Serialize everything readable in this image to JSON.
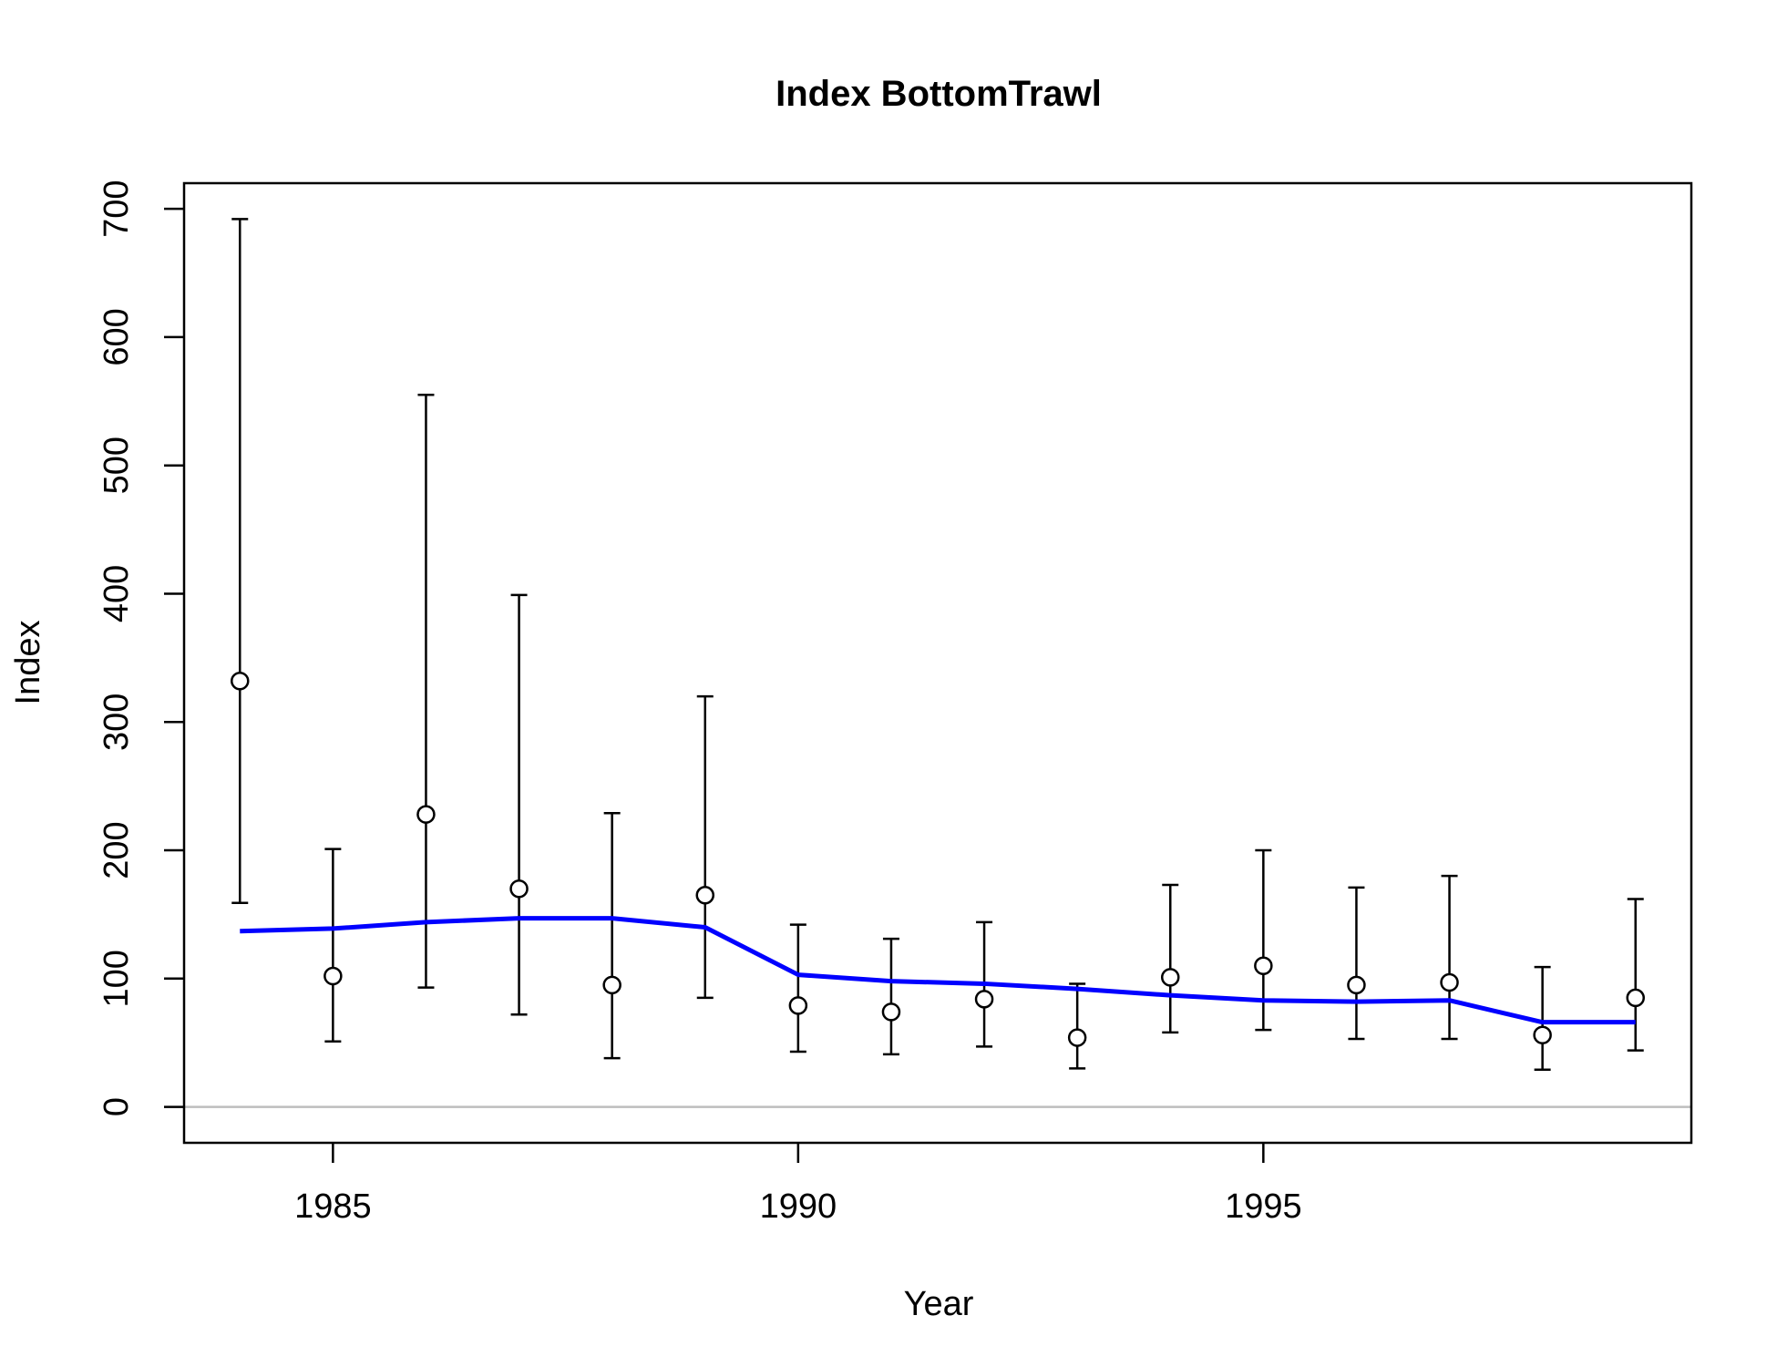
{
  "chart_data": {
    "type": "scatter",
    "title": "Index BottomTrawl",
    "xlabel": "Year",
    "ylabel": "Index",
    "xlim": [
      1983.4,
      1999.6
    ],
    "ylim": [
      -28,
      720
    ],
    "x_ticks": [
      1985,
      1990,
      1995
    ],
    "y_ticks": [
      0,
      100,
      200,
      300,
      400,
      500,
      600,
      700
    ],
    "reference_line_y": 0,
    "observed": {
      "marker": "open-circle",
      "x": [
        1984,
        1985,
        1986,
        1987,
        1988,
        1989,
        1990,
        1991,
        1992,
        1993,
        1994,
        1995,
        1996,
        1997,
        1998,
        1999
      ],
      "y": [
        332,
        102,
        228,
        170,
        95,
        165,
        79,
        74,
        84,
        54,
        101,
        110,
        95,
        97,
        56,
        85
      ],
      "lower": [
        159,
        51,
        93,
        72,
        38,
        85,
        43,
        41,
        47,
        30,
        58,
        60,
        53,
        53,
        29,
        44
      ],
      "upper": [
        692,
        201,
        555,
        399,
        229,
        320,
        142,
        131,
        144,
        96,
        173,
        200,
        171,
        180,
        109,
        162
      ]
    },
    "fitted": {
      "color": "#0000ff",
      "x": [
        1984,
        1985,
        1986,
        1987,
        1988,
        1989,
        1990,
        1991,
        1992,
        1993,
        1994,
        1995,
        1996,
        1997,
        1998,
        1999
      ],
      "y": [
        137,
        139,
        144,
        147,
        147,
        140,
        103,
        98,
        96,
        92,
        87,
        83,
        82,
        83,
        66,
        66
      ]
    },
    "colors": {
      "fitted_line": "#0000ff",
      "reference_line": "#bebebe",
      "points": "#000000"
    }
  }
}
